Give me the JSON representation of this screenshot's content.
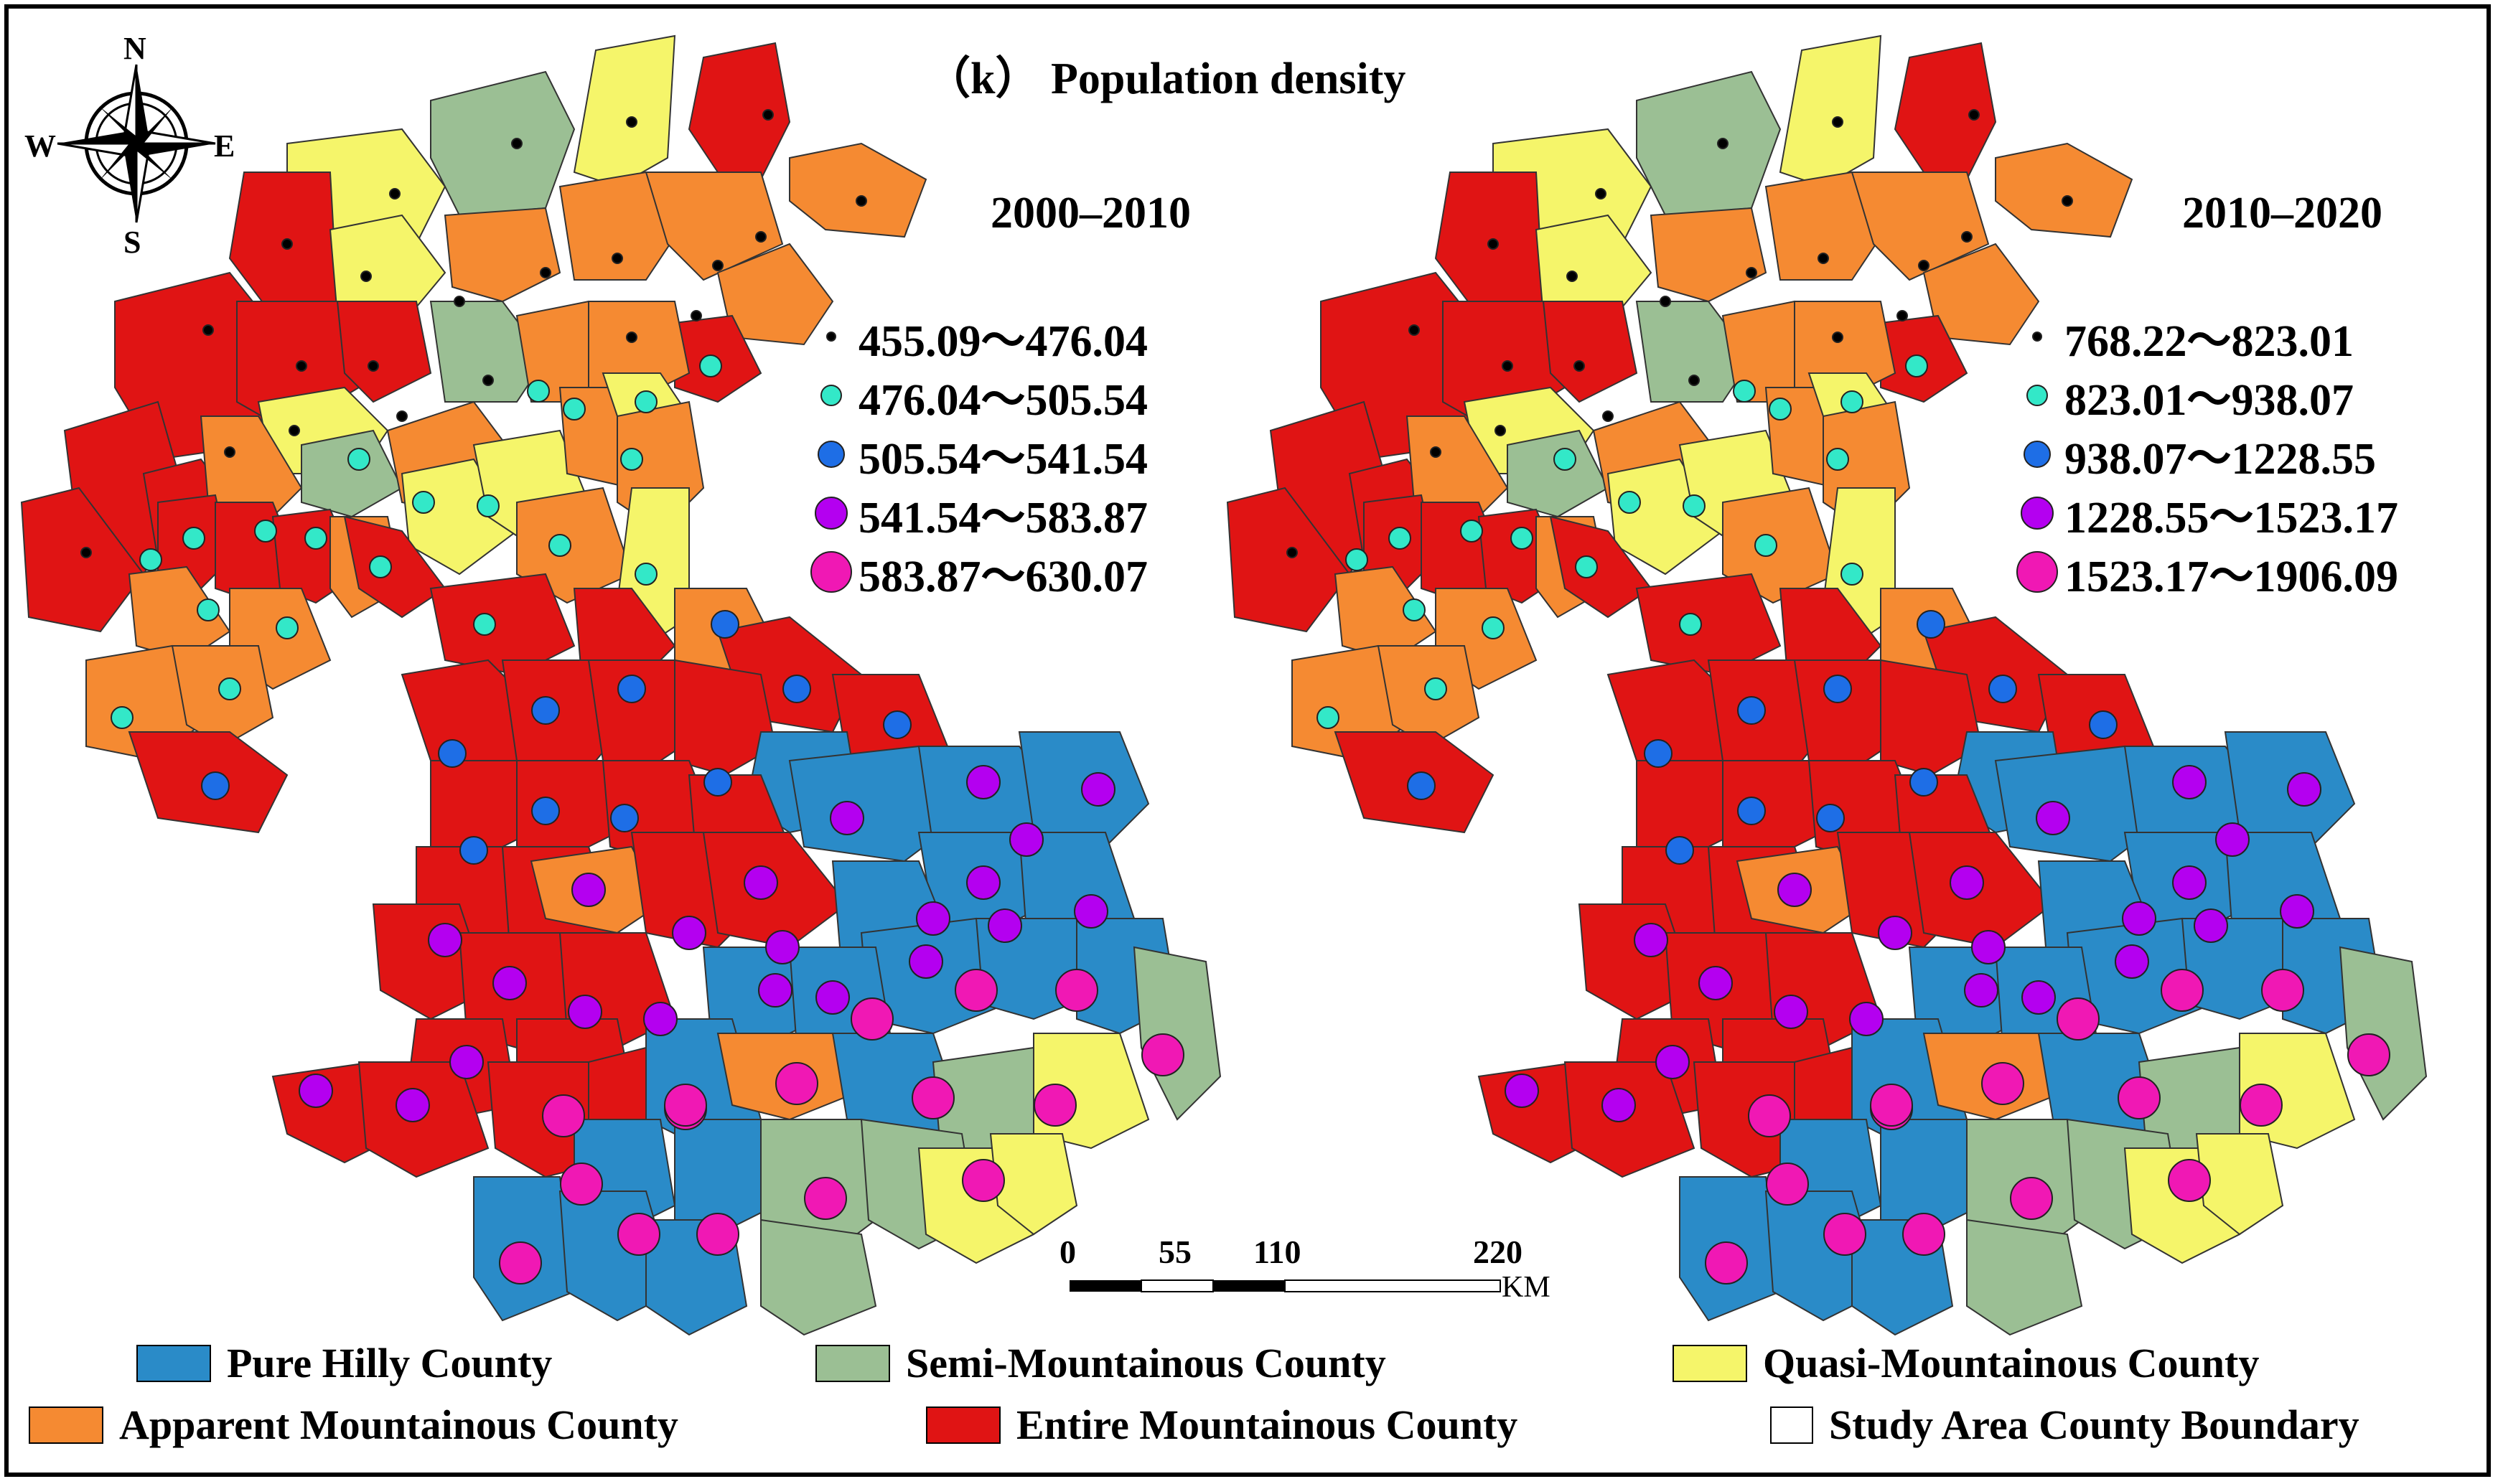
{
  "title": "（k） Population density",
  "maps": [
    {
      "period": "2000–2010",
      "classes": [
        {
          "label": "455.09～476.04",
          "color": "#000000",
          "size": 14
        },
        {
          "label": "476.04～505.54",
          "color": "#33e8c8",
          "size": 30
        },
        {
          "label": "505.54～541.54",
          "color": "#1e6ee6",
          "size": 38
        },
        {
          "label": "541.54～583.87",
          "color": "#b400f0",
          "size": 46
        },
        {
          "label": "583.87～630.07",
          "color": "#f018b4",
          "size": 58
        }
      ]
    },
    {
      "period": "2010–2020",
      "classes": [
        {
          "label": "768.22～823.01",
          "color": "#000000",
          "size": 14
        },
        {
          "label": "823.01～938.07",
          "color": "#33e8c8",
          "size": 30
        },
        {
          "label": "938.07～1228.55",
          "color": "#1e6ee6",
          "size": 38
        },
        {
          "label": "1228.55～1523.17",
          "color": "#b400f0",
          "size": 46
        },
        {
          "label": "1523.17～1906.09",
          "color": "#f018b4",
          "size": 58
        }
      ]
    }
  ],
  "county_types": [
    {
      "label": "Pure Hilly County",
      "color": "#2a8bc8"
    },
    {
      "label": "Semi-Mountainous County",
      "color": "#9bbf94"
    },
    {
      "label": "Quasi-Mountainous County",
      "color": "#f5f56a"
    },
    {
      "label": "Apparent Mountainous County",
      "color": "#f58a32"
    },
    {
      "label": "Entire Mountainous County",
      "color": "#e01414"
    },
    {
      "label": "Study Area County Boundary",
      "color": "#ffffff"
    }
  ],
  "scale_bar": {
    "labels": [
      "0",
      "55",
      "110",
      "220"
    ],
    "unit": "KM"
  },
  "compass": {
    "n": "N",
    "s": "S",
    "e": "E",
    "w": "W"
  }
}
